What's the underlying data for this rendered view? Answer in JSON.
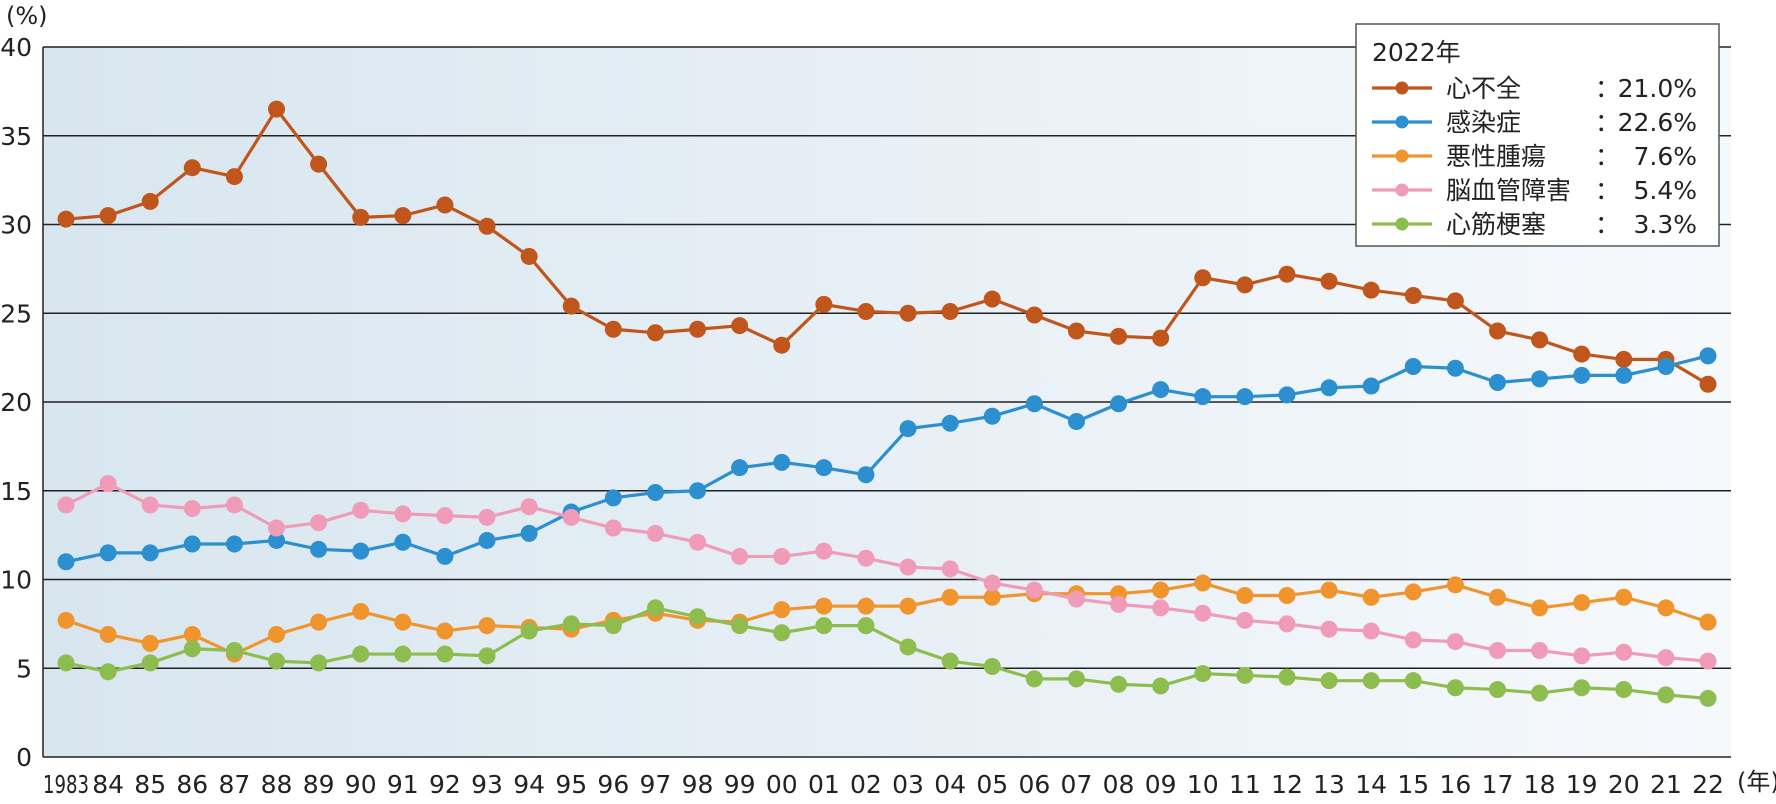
{
  "chart_data": {
    "type": "line",
    "y_unit": "(%)",
    "x_unit": "(年)",
    "ylim": [
      0,
      40
    ],
    "yticks": [
      "0",
      "5",
      "10",
      "15",
      "20",
      "25",
      "30",
      "35",
      "40"
    ],
    "categories": [
      "1983",
      "84",
      "85",
      "86",
      "87",
      "88",
      "89",
      "90",
      "91",
      "92",
      "93",
      "94",
      "95",
      "96",
      "97",
      "98",
      "99",
      "00",
      "01",
      "02",
      "03",
      "04",
      "05",
      "06",
      "07",
      "08",
      "09",
      "10",
      "11",
      "12",
      "13",
      "14",
      "15",
      "16",
      "17",
      "18",
      "19",
      "20",
      "21",
      "22"
    ],
    "grid": "horizontal",
    "legend_placement": "top-right",
    "legend": {
      "title": "2022年",
      "entries": [
        {
          "name": "心不全",
          "sep": "：",
          "value": "21.0%"
        },
        {
          "name": "感染症",
          "sep": "：",
          "value": "22.6%"
        },
        {
          "name": "悪性腫瘍",
          "sep": "：",
          "value": "7.6%"
        },
        {
          "name": "脳血管障害",
          "sep": "：",
          "value": "5.4%"
        },
        {
          "name": "心筋梗塞",
          "sep": "：",
          "value": "3.3%"
        }
      ]
    },
    "series": [
      {
        "name": "心不全",
        "color": "#c0561b",
        "values": [
          30.3,
          30.5,
          31.3,
          33.2,
          32.7,
          36.5,
          33.4,
          30.4,
          30.5,
          31.1,
          29.9,
          28.2,
          25.4,
          24.1,
          23.9,
          24.1,
          24.3,
          23.2,
          25.5,
          25.1,
          25.0,
          25.1,
          25.8,
          24.9,
          24.0,
          23.7,
          23.6,
          27.0,
          26.6,
          27.2,
          26.8,
          26.3,
          26.0,
          25.7,
          24.0,
          23.5,
          22.7,
          22.4,
          22.4,
          21.0
        ]
      },
      {
        "name": "感染症",
        "color": "#2b8fd0",
        "values": [
          11.0,
          11.5,
          11.5,
          12.0,
          12.0,
          12.2,
          11.7,
          11.6,
          12.1,
          11.3,
          12.2,
          12.6,
          13.8,
          14.6,
          14.9,
          15.0,
          16.3,
          16.6,
          16.3,
          15.9,
          18.5,
          18.8,
          19.2,
          19.9,
          18.9,
          19.9,
          20.7,
          20.3,
          20.3,
          20.4,
          20.8,
          20.9,
          22.0,
          21.9,
          21.1,
          21.3,
          21.5,
          21.5,
          22.0,
          22.6
        ]
      },
      {
        "name": "悪性腫瘍",
        "color": "#f0952e",
        "values": [
          7.7,
          6.9,
          6.4,
          6.9,
          5.8,
          6.9,
          7.6,
          8.2,
          7.6,
          7.1,
          7.4,
          7.3,
          7.2,
          7.7,
          8.1,
          7.7,
          7.6,
          8.3,
          8.5,
          8.5,
          8.5,
          9.0,
          9.0,
          9.2,
          9.2,
          9.2,
          9.4,
          9.8,
          9.1,
          9.1,
          9.4,
          9.0,
          9.3,
          9.7,
          9.0,
          8.4,
          8.7,
          9.0,
          8.4,
          7.6
        ]
      },
      {
        "name": "脳血管障害",
        "color": "#f09cb9",
        "values": [
          14.2,
          15.4,
          14.2,
          14.0,
          14.2,
          12.9,
          13.2,
          13.9,
          13.7,
          13.6,
          13.5,
          14.1,
          13.5,
          12.9,
          12.6,
          12.1,
          11.3,
          11.3,
          11.6,
          11.2,
          10.7,
          10.6,
          9.8,
          9.4,
          8.9,
          8.6,
          8.4,
          8.1,
          7.7,
          7.5,
          7.2,
          7.1,
          6.6,
          6.5,
          6.0,
          6.0,
          5.7,
          5.9,
          5.6,
          5.4
        ]
      },
      {
        "name": "心筋梗塞",
        "color": "#8dbd4e",
        "values": [
          5.3,
          4.8,
          5.3,
          6.1,
          6.0,
          5.4,
          5.3,
          5.8,
          5.8,
          5.8,
          5.7,
          7.1,
          7.5,
          7.4,
          8.4,
          7.9,
          7.4,
          7.0,
          7.4,
          7.4,
          6.2,
          5.4,
          5.1,
          4.4,
          4.4,
          4.1,
          4.0,
          4.7,
          4.6,
          4.5,
          4.3,
          4.3,
          4.3,
          3.9,
          3.8,
          3.6,
          3.9,
          3.8,
          3.5,
          3.3
        ]
      }
    ]
  }
}
